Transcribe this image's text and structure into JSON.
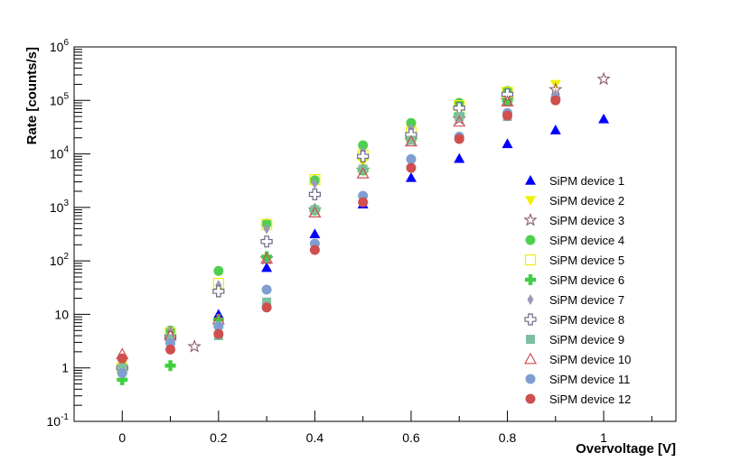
{
  "chart_data": {
    "type": "scatter",
    "xlabel": "Overvoltage [V]",
    "ylabel": "Rate [counts/s]",
    "xlim": [
      -0.1,
      1.15
    ],
    "ylim": [
      0.1,
      1000000
    ],
    "yscale": "log",
    "x_ticks": [
      "0",
      "0.2",
      "0.4",
      "0.6",
      "0.8",
      "1"
    ],
    "y_ticks": [
      {
        "base": "10",
        "exp": "-1"
      },
      {
        "base": "1",
        "exp": ""
      },
      {
        "base": "10",
        "exp": ""
      },
      {
        "base": "10",
        "exp": "2"
      },
      {
        "base": "10",
        "exp": "3"
      },
      {
        "base": "10",
        "exp": "4"
      },
      {
        "base": "10",
        "exp": "5"
      },
      {
        "base": "10",
        "exp": "6"
      }
    ],
    "legend_position": "right",
    "series": [
      {
        "name": "SiPM device 1",
        "marker": "triangle-up",
        "color": "#0000ff",
        "x": [
          0,
          0.1,
          0.2,
          0.3,
          0.4,
          0.5,
          0.6,
          0.7,
          0.8,
          0.9,
          1.0
        ],
        "y": [
          1.2,
          4.0,
          10,
          75,
          320,
          1150,
          3600,
          8200,
          15500,
          28000,
          45000
        ]
      },
      {
        "name": "SiPM device 2",
        "marker": "triangle-down",
        "color": "#f0f000",
        "x": [
          0,
          0.1,
          0.2,
          0.3,
          0.4,
          0.5,
          0.6,
          0.7,
          0.8,
          0.9
        ],
        "y": [
          1.2,
          4.5,
          25,
          400,
          3000,
          7000,
          30000,
          80000,
          150000,
          200000
        ]
      },
      {
        "name": "SiPM device 3",
        "marker": "star-open",
        "color": "#8c5a6a",
        "x": [
          0.15,
          0.3,
          0.4,
          0.5,
          0.6,
          0.7,
          0.8,
          0.9,
          1.0
        ],
        "y": [
          2.5,
          110,
          900,
          5000,
          18000,
          45000,
          100000,
          160000,
          250000
        ]
      },
      {
        "name": "SiPM device 4",
        "marker": "circle",
        "color": "#4fcf4f",
        "x": [
          0,
          0.1,
          0.2,
          0.3,
          0.4,
          0.5,
          0.6,
          0.7,
          0.8
        ],
        "y": [
          1.0,
          5.0,
          65,
          500,
          3200,
          14500,
          38000,
          90000,
          150000
        ]
      },
      {
        "name": "SiPM device 5",
        "marker": "square-open",
        "color": "#f0f000",
        "x": [
          0,
          0.1,
          0.2,
          0.3,
          0.4,
          0.5,
          0.6,
          0.7,
          0.8
        ],
        "y": [
          1.0,
          4.5,
          38,
          480,
          3300,
          9500,
          25000,
          80000,
          140000
        ]
      },
      {
        "name": "SiPM device 6",
        "marker": "cross",
        "color": "#3fcf3f",
        "x": [
          0,
          0.1,
          0.2,
          0.3,
          0.4,
          0.5,
          0.6,
          0.7,
          0.8
        ],
        "y": [
          0.6,
          1.1,
          8.0,
          120,
          900,
          5000,
          19000,
          55000,
          100000
        ]
      },
      {
        "name": "SiPM device 7",
        "marker": "diamond",
        "color": "#9a9aba",
        "x": [
          0,
          0.1,
          0.2,
          0.3,
          0.4,
          0.5,
          0.6,
          0.7,
          0.8,
          0.9
        ],
        "y": [
          1.0,
          5.0,
          35,
          400,
          2800,
          11000,
          30000,
          70000,
          120000,
          130000
        ]
      },
      {
        "name": "SiPM device 8",
        "marker": "cross-open",
        "color": "#6a6a8a",
        "x": [
          0,
          0.1,
          0.2,
          0.3,
          0.4,
          0.5,
          0.6,
          0.7,
          0.8
        ],
        "y": [
          1.0,
          3.8,
          27,
          230,
          1750,
          9000,
          23000,
          72000,
          130000
        ]
      },
      {
        "name": "SiPM device 9",
        "marker": "square",
        "color": "#7fbf9f",
        "x": [
          0,
          0.1,
          0.2,
          0.3,
          0.4,
          0.5,
          0.6,
          0.7,
          0.8
        ],
        "y": [
          1.0,
          3.5,
          4.0,
          17,
          900,
          5200,
          18000,
          50000,
          50000
        ]
      },
      {
        "name": "SiPM device 10",
        "marker": "triangle-up-open",
        "color": "#cf4f4f",
        "x": [
          0,
          0.1,
          0.2,
          0.3,
          0.4,
          0.5,
          0.6,
          0.7,
          0.8
        ],
        "y": [
          1.8,
          4.0,
          8.0,
          110,
          800,
          4300,
          17000,
          40000,
          95000
        ]
      },
      {
        "name": "SiPM device 11",
        "marker": "circle",
        "color": "#7f9fcf",
        "x": [
          0,
          0.1,
          0.2,
          0.3,
          0.4,
          0.5,
          0.6,
          0.7,
          0.8,
          0.9
        ],
        "y": [
          0.8,
          2.9,
          6.0,
          29,
          210,
          1650,
          8000,
          21000,
          58000,
          110000
        ]
      },
      {
        "name": "SiPM device 12",
        "marker": "circle",
        "color": "#cf4f4f",
        "x": [
          0,
          0.1,
          0.2,
          0.3,
          0.4,
          0.5,
          0.6,
          0.7,
          0.8,
          0.9
        ],
        "y": [
          1.5,
          2.2,
          4.3,
          13.5,
          160,
          1250,
          5500,
          19000,
          52000,
          100000
        ]
      }
    ]
  }
}
